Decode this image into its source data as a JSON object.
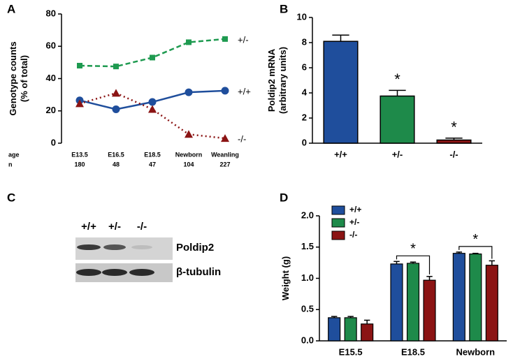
{
  "chart_data": [
    {
      "type": "line",
      "panel": "A",
      "ylabel": [
        "Genotype counts",
        "(% of total)"
      ],
      "x_row_labels": [
        "age",
        "n"
      ],
      "categories": [
        "E13.5",
        "E16.5",
        "E18.5",
        "Newborn",
        "Weanling"
      ],
      "n": [
        180,
        48,
        47,
        104,
        227
      ],
      "ylim": [
        0,
        80
      ],
      "yticks": [
        0,
        20,
        40,
        60,
        80
      ],
      "series": [
        {
          "name": "+/-",
          "color": "#1e9a50",
          "linestyle": "dashed",
          "marker": "square",
          "values": [
            48,
            47.5,
            53,
            62.5,
            64.5
          ]
        },
        {
          "name": "+/+",
          "color": "#1f4e9c",
          "linestyle": "solid",
          "marker": "circle",
          "values": [
            26.5,
            21,
            25.5,
            31.5,
            32.5
          ]
        },
        {
          "name": "-/-",
          "color": "#8b1414",
          "linestyle": "dotted",
          "marker": "triangle",
          "values": [
            24.5,
            31,
            21,
            5.5,
            3
          ]
        }
      ]
    },
    {
      "type": "bar",
      "panel": "B",
      "ylabel": [
        "Poldip2 mRNA",
        "(arbitrary  units)"
      ],
      "categories": [
        "+/+",
        "+/-",
        "-/-"
      ],
      "values": [
        8.1,
        3.75,
        0.25
      ],
      "errors": [
        0.5,
        0.45,
        0.15
      ],
      "colors": [
        "#1f4e9c",
        "#1e8a4a",
        "#8b1414"
      ],
      "significance": [
        null,
        "*",
        "*"
      ],
      "ylim": [
        0,
        10
      ],
      "yticks": [
        0,
        2,
        4,
        6,
        8,
        10
      ]
    },
    {
      "type": "grouped_bar",
      "panel": "D",
      "ylabel": [
        "Weight  (g)"
      ],
      "categories": [
        "E15.5",
        "E18.5",
        "Newborn"
      ],
      "legend": "upper left",
      "series": [
        {
          "name": "+/+",
          "color": "#1f4e9c",
          "values": [
            0.37,
            1.23,
            1.4
          ],
          "errors": [
            0.02,
            0.04,
            0.02
          ]
        },
        {
          "name": "+/-",
          "color": "#1e8a4a",
          "values": [
            0.37,
            1.24,
            1.39
          ],
          "errors": [
            0.02,
            0.02,
            0.01
          ]
        },
        {
          "name": "-/-",
          "color": "#8b1414",
          "values": [
            0.27,
            0.97,
            1.21
          ],
          "errors": [
            0.06,
            0.06,
            0.07
          ]
        }
      ],
      "significance": [
        null,
        "*",
        "*"
      ],
      "ylim": [
        0,
        2
      ],
      "yticks": [
        {
          "value": 0,
          "label": "0.0"
        },
        {
          "value": 0.5,
          "label": "0.5"
        },
        {
          "value": 1,
          "label": "1.0"
        },
        {
          "value": 1.5,
          "label": "1.5"
        },
        {
          "value": 2,
          "label": "2.0"
        }
      ]
    }
  ],
  "blot": {
    "panel": "C",
    "lanes": [
      "+/+",
      "+/-",
      "-/-"
    ],
    "bands": [
      "Poldip2",
      "β-tubulin"
    ]
  }
}
